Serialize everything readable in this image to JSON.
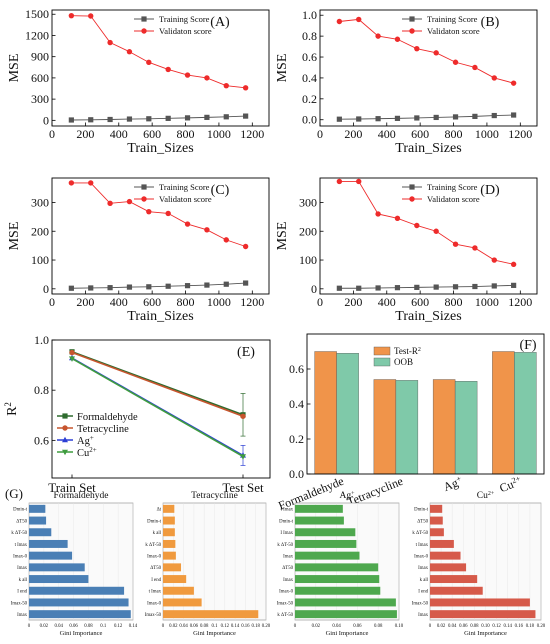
{
  "colors": {
    "training": "#555555",
    "validation": "#ee2b2b",
    "formaldehyde_e": "#2e6b2e",
    "tetracycline_e": "#c7552e",
    "ag_e": "#2c3fd4",
    "cu_e": "#3f9c3f",
    "test_r2": "#f0944a",
    "oob": "#7fc9a9",
    "gini_formaldehyde": "#4a7fb5",
    "gini_tetracycline": "#f09a3e",
    "gini_ag": "#4ea84e",
    "gini_cu": "#d65a4a"
  },
  "chart_data": [
    {
      "panel": "(A)",
      "type": "line",
      "xlabel": "Train_Sizes",
      "ylabel": "MSE",
      "xlim": [
        0,
        1300
      ],
      "ylim": [
        -80,
        1560
      ],
      "xticks": [
        0,
        200,
        400,
        600,
        800,
        1000,
        1200
      ],
      "yticks": [
        0,
        300,
        600,
        900,
        1200,
        1500
      ],
      "x": [
        116,
        232,
        348,
        464,
        580,
        696,
        812,
        928,
        1044,
        1160
      ],
      "series": [
        {
          "name": "Training Score",
          "values": [
            5,
            8,
            12,
            18,
            22,
            28,
            35,
            42,
            50,
            60
          ]
        },
        {
          "name": "Validaton score",
          "values": [
            1480,
            1475,
            1100,
            970,
            820,
            720,
            640,
            600,
            490,
            460
          ]
        }
      ]
    },
    {
      "panel": "(B)",
      "type": "line",
      "xlabel": "Train_Sizes",
      "ylabel": "MSE",
      "xlim": [
        0,
        1300
      ],
      "ylim": [
        -0.06,
        1.05
      ],
      "xticks": [
        0,
        200,
        400,
        600,
        800,
        1000,
        1200
      ],
      "yticks": [
        0.0,
        0.2,
        0.4,
        0.6,
        0.8,
        1.0
      ],
      "ytick_labels": [
        "0.0",
        "0.2",
        "0.4",
        "0.6",
        "0.8",
        "1.0"
      ],
      "x": [
        116,
        232,
        348,
        464,
        580,
        696,
        812,
        928,
        1044,
        1160
      ],
      "series": [
        {
          "name": "Training Score",
          "values": [
            0.005,
            0.007,
            0.01,
            0.013,
            0.017,
            0.022,
            0.027,
            0.032,
            0.04,
            0.045
          ]
        },
        {
          "name": "Validaton score",
          "values": [
            0.94,
            0.96,
            0.8,
            0.77,
            0.68,
            0.64,
            0.55,
            0.5,
            0.4,
            0.35
          ]
        }
      ]
    },
    {
      "panel": "(C)",
      "type": "line",
      "xlabel": "Train_Sizes",
      "ylabel": "MSE",
      "xlim": [
        0,
        1300
      ],
      "ylim": [
        -18,
        385
      ],
      "xticks": [
        0,
        200,
        400,
        600,
        800,
        1000,
        1200
      ],
      "yticks": [
        0,
        100,
        200,
        300
      ],
      "x": [
        116,
        232,
        348,
        464,
        580,
        696,
        812,
        928,
        1044,
        1160
      ],
      "series": [
        {
          "name": "Training Score",
          "values": [
            2,
            3,
            4,
            6,
            7,
            9,
            11,
            13,
            16,
            20
          ]
        },
        {
          "name": "Validaton score",
          "values": [
            368,
            368,
            297,
            303,
            268,
            262,
            225,
            205,
            170,
            147
          ]
        }
      ]
    },
    {
      "panel": "(D)",
      "type": "line",
      "xlabel": "Train_Sizes",
      "ylabel": "MSE",
      "xlim": [
        0,
        1300
      ],
      "ylim": [
        -18,
        385
      ],
      "xticks": [
        0,
        200,
        400,
        600,
        800,
        1000,
        1200
      ],
      "yticks": [
        0,
        100,
        200,
        300
      ],
      "x": [
        116,
        232,
        348,
        464,
        580,
        696,
        812,
        928,
        1044,
        1160
      ],
      "series": [
        {
          "name": "Training Score",
          "values": [
            2,
            2,
            3,
            4,
            5,
            6,
            7,
            8,
            10,
            12
          ]
        },
        {
          "name": "Validaton score",
          "values": [
            373,
            373,
            260,
            245,
            220,
            200,
            155,
            142,
            100,
            85
          ]
        }
      ]
    },
    {
      "panel": "(E)",
      "type": "line",
      "ylabel": "R2",
      "categories": [
        "Train Set",
        "Test Set"
      ],
      "ylim": [
        0.45,
        1.0
      ],
      "yticks": [
        0.6,
        0.8,
        1.0
      ],
      "ytick_labels": [
        "0.6",
        "0.8",
        "1.0"
      ],
      "series": [
        {
          "name": "Formaldehyde",
          "values": [
            0.953,
            0.702
          ],
          "errors": [
            0.004,
            0.085
          ]
        },
        {
          "name": "Tetracycline",
          "values": [
            0.95,
            0.696
          ]
        },
        {
          "name": "Ag",
          "values": [
            0.928,
            0.54
          ],
          "errors": [
            0.004,
            0.04
          ]
        },
        {
          "name": "Cu",
          "values": [
            0.926,
            0.536
          ]
        }
      ]
    },
    {
      "panel": "(F)",
      "type": "bar",
      "categories": [
        "Formaldehyde",
        "Tetracycline",
        "Ag",
        "Cu"
      ],
      "ylim": [
        0,
        0.8
      ],
      "yticks": [
        0.0,
        0.2,
        0.4,
        0.6
      ],
      "ytick_labels": [
        "0.0",
        "0.2",
        "0.4",
        "0.6"
      ],
      "series": [
        {
          "name": "Test-R",
          "values": [
            0.7,
            0.54,
            0.54,
            0.7
          ]
        },
        {
          "name": "OOB",
          "values": [
            0.69,
            0.535,
            0.53,
            0.695
          ]
        }
      ]
    },
    {
      "panel": "(G)",
      "type": "bar",
      "orientation": "horizontal",
      "title": "Formaldehyde",
      "xlabel": "Gini Importance",
      "xlim": [
        0,
        0.14
      ],
      "xticks": [
        0,
        0.02,
        0.04,
        0.06,
        0.08,
        0.1,
        0.12,
        0.14
      ],
      "xtick_labels": [
        "0",
        "0.02",
        "0.04",
        "0.06",
        "0.08",
        "0.1",
        "0.12",
        "0.14"
      ],
      "categories": [
        "Dmin-t",
        "ΔT50",
        "k ΔT-50",
        "t Imax",
        "Imax-0",
        "Imax",
        "k all",
        "I end",
        "Imax-50",
        "Imax"
      ],
      "values": [
        0.022,
        0.023,
        0.03,
        0.052,
        0.058,
        0.075,
        0.08,
        0.128,
        0.134,
        0.137
      ]
    },
    {
      "type": "bar",
      "orientation": "horizontal",
      "title": "Tetracycline",
      "xlabel": "Gini Importance",
      "xlim": [
        0,
        0.2
      ],
      "xticks": [
        0,
        0.02,
        0.04,
        0.06,
        0.08,
        0.1,
        0.12,
        0.14,
        0.16,
        0.18,
        0.2
      ],
      "xtick_labels": [
        "0",
        "0.02",
        "0.04",
        "0.06",
        "0.08",
        "0.1",
        "0.12",
        "0.14",
        "0.16",
        "0.18",
        "0.20"
      ],
      "categories": [
        "Δt",
        "Dmin-t",
        "k all",
        "k ΔT-50",
        "Imax-0",
        "ΔT50",
        "I end",
        "t Imax",
        "Imax-0",
        "Imax-50"
      ],
      "values": [
        0.022,
        0.023,
        0.023,
        0.024,
        0.025,
        0.035,
        0.045,
        0.06,
        0.075,
        0.185
      ]
    },
    {
      "type": "bar",
      "orientation": "horizontal",
      "title": "Ag",
      "xlabel": "Gini Importance",
      "xlim": [
        0,
        0.1
      ],
      "xticks": [
        0,
        0.02,
        0.04,
        0.06,
        0.08,
        0.1
      ],
      "xtick_labels": [
        "0",
        "0.02",
        "0.04",
        "0.06",
        "0.08",
        "0.10"
      ],
      "categories": [
        "t Imax",
        "Dmin-t",
        "I Imax",
        "k ΔT-50",
        "Imax",
        "ΔT50",
        "Imax",
        "Imax-0",
        "Imax-50",
        "k ΔT-50"
      ],
      "values": [
        0.046,
        0.047,
        0.058,
        0.059,
        0.062,
        0.08,
        0.081,
        0.082,
        0.097,
        0.098
      ]
    },
    {
      "type": "bar",
      "orientation": "horizontal",
      "title": "Cu",
      "xlabel": "Gini Importance",
      "xlim": [
        0,
        0.2
      ],
      "xticks": [
        0,
        0.02,
        0.04,
        0.06,
        0.08,
        0.1,
        0.12,
        0.14,
        0.16,
        0.18,
        0.2
      ],
      "xtick_labels": [
        "0",
        "0.02",
        "0.04",
        "0.06",
        "0.08",
        "0.10",
        "0.12",
        "0.14",
        "0.16",
        "0.18",
        "0.20"
      ],
      "categories": [
        "Dmin-t",
        "ΔT50",
        "k ΔT-50",
        "t Imax",
        "Imax-0",
        "Imax",
        "k all",
        "I end",
        "Imax-50",
        "Imax"
      ],
      "values": [
        0.022,
        0.023,
        0.025,
        0.043,
        0.055,
        0.065,
        0.085,
        0.095,
        0.18,
        0.19
      ]
    }
  ]
}
